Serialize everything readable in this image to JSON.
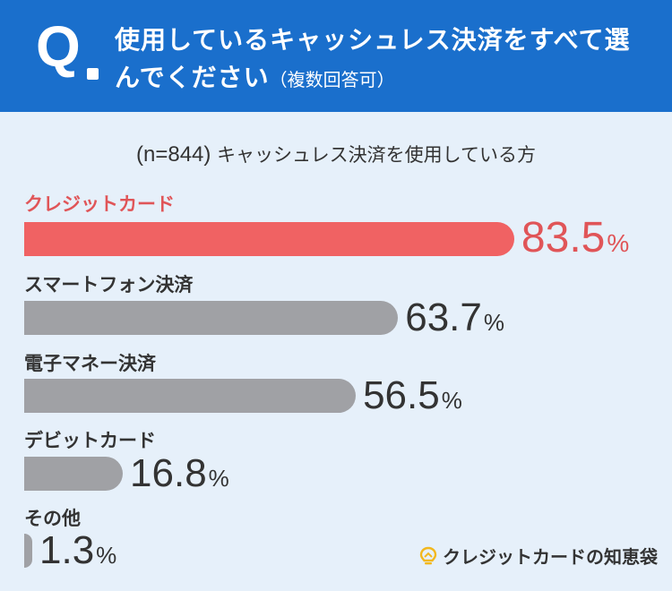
{
  "header": {
    "q_letter": "Q",
    "question": "使用しているキャッシュレス決済をすべて選んでください",
    "question_note": "（複数回答可）"
  },
  "subtitle": {
    "sample": "(n=844)",
    "description": "キャッシュレス決済を使用している方"
  },
  "chart_data": {
    "type": "bar",
    "orientation": "horizontal",
    "categories": [
      "クレジットカード",
      "スマートフォン決済",
      "電子マネー決済",
      "デビットカード",
      "その他"
    ],
    "values": [
      83.5,
      63.7,
      56.5,
      16.8,
      1.3
    ],
    "value_labels": [
      "83.5",
      "63.7",
      "56.5",
      "16.8",
      "1.3"
    ],
    "unit": "%",
    "highlight_index": 0,
    "xlim": [
      0,
      100
    ],
    "colors": {
      "highlight": "#f06263",
      "default": "#a0a1a5",
      "highlight_text": "#e05558"
    }
  },
  "brand": {
    "name": "クレジットカードの知恵袋",
    "icon": "lightbulb-icon",
    "icon_color": "#f2b81e"
  }
}
